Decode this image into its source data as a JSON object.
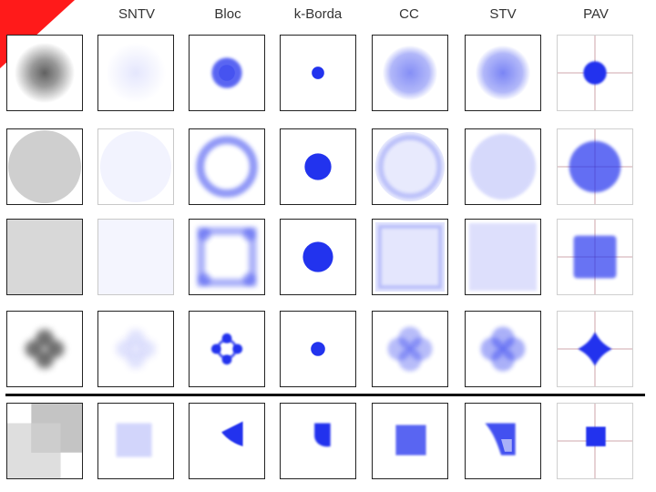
{
  "columns": [
    "SNTV",
    "Bloc",
    "k-Borda",
    "CC",
    "STV",
    "PAV"
  ],
  "colors": {
    "accent": "#ff1a1a",
    "blue": "#2233ee",
    "gray": "#555555",
    "cross": "#8a2a3a"
  }
}
